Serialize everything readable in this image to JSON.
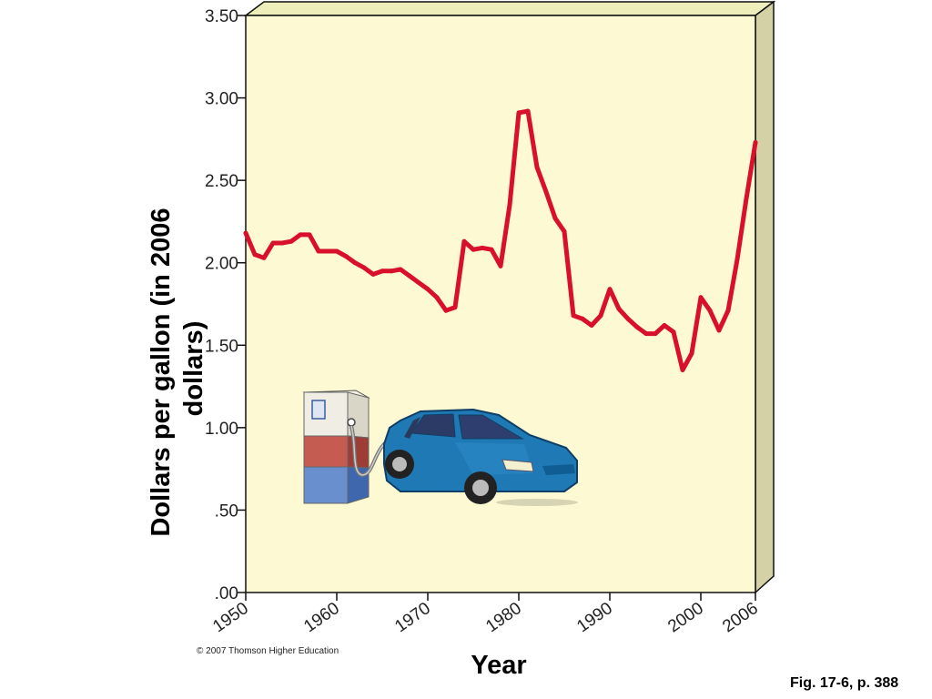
{
  "chart_data": {
    "type": "line",
    "ylabel": "Dollars per gallon (in 2006 dollars)",
    "ylabel_lines": [
      "Dollars per gallon (in 2006",
      "dollars)"
    ],
    "xlabel": "Year",
    "ylim": [
      0,
      3.5
    ],
    "xlim": [
      1950,
      2006
    ],
    "y_ticks": [
      {
        "value": 0,
        "label": ".00"
      },
      {
        "value": 0.5,
        "label": ".50"
      },
      {
        "value": 1.0,
        "label": "1.00"
      },
      {
        "value": 1.5,
        "label": "1.50"
      },
      {
        "value": 2.0,
        "label": "2.00"
      },
      {
        "value": 2.5,
        "label": "2.50"
      },
      {
        "value": 3.0,
        "label": "3.00"
      },
      {
        "value": 3.5,
        "label": "3.50"
      }
    ],
    "x_ticks": [
      {
        "value": 1950,
        "label": "1950"
      },
      {
        "value": 1960,
        "label": "1960"
      },
      {
        "value": 1970,
        "label": "1970"
      },
      {
        "value": 1980,
        "label": "1980"
      },
      {
        "value": 1990,
        "label": "1990"
      },
      {
        "value": 2000,
        "label": "2000"
      },
      {
        "value": 2006,
        "label": "2006"
      }
    ],
    "series": [
      {
        "color": "#d8102a",
        "points": [
          [
            1950,
            2.18
          ],
          [
            1951,
            2.05
          ],
          [
            1952,
            2.03
          ],
          [
            1953,
            2.12
          ],
          [
            1954,
            2.12
          ],
          [
            1955,
            2.13
          ],
          [
            1956,
            2.17
          ],
          [
            1957,
            2.17
          ],
          [
            1958,
            2.07
          ],
          [
            1959,
            2.07
          ],
          [
            1960,
            2.07
          ],
          [
            1961,
            2.04
          ],
          [
            1962,
            2.0
          ],
          [
            1963,
            1.97
          ],
          [
            1964,
            1.93
          ],
          [
            1965,
            1.95
          ],
          [
            1966,
            1.95
          ],
          [
            1967,
            1.96
          ],
          [
            1968,
            1.92
          ],
          [
            1969,
            1.88
          ],
          [
            1970,
            1.84
          ],
          [
            1971,
            1.79
          ],
          [
            1972,
            1.71
          ],
          [
            1973,
            1.73
          ],
          [
            1974,
            2.13
          ],
          [
            1975,
            2.08
          ],
          [
            1976,
            2.09
          ],
          [
            1977,
            2.08
          ],
          [
            1978,
            1.98
          ],
          [
            1979,
            2.35
          ],
          [
            1980,
            2.91
          ],
          [
            1981,
            2.92
          ],
          [
            1982,
            2.58
          ],
          [
            1983,
            2.43
          ],
          [
            1984,
            2.27
          ],
          [
            1985,
            2.19
          ],
          [
            1986,
            1.68
          ],
          [
            1987,
            1.66
          ],
          [
            1988,
            1.62
          ],
          [
            1989,
            1.68
          ],
          [
            1990,
            1.84
          ],
          [
            1991,
            1.72
          ],
          [
            1992,
            1.66
          ],
          [
            1993,
            1.61
          ],
          [
            1994,
            1.57
          ],
          [
            1995,
            1.57
          ],
          [
            1996,
            1.62
          ],
          [
            1997,
            1.58
          ],
          [
            1998,
            1.35
          ],
          [
            1999,
            1.45
          ],
          [
            2000,
            1.79
          ],
          [
            2001,
            1.71
          ],
          [
            2002,
            1.59
          ],
          [
            2003,
            1.71
          ],
          [
            2004,
            2.02
          ],
          [
            2005,
            2.39
          ],
          [
            2006,
            2.73
          ]
        ]
      }
    ],
    "grid": false
  },
  "illustration": {
    "pump": "gas-pump",
    "car": "blue-sedan"
  },
  "copyright": "© 2007 Thomson Higher Education",
  "figure_caption": "Fig. 17-6, p. 388",
  "colors": {
    "plot_background": "#fdf9d3",
    "box_side": "#d3d1a5",
    "line": "#d8102a",
    "car_body": "#1f79b4"
  }
}
